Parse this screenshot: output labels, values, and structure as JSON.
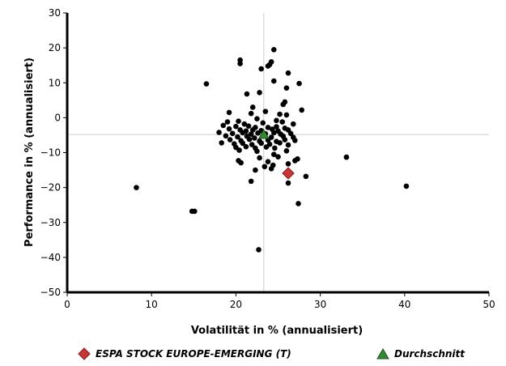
{
  "chart_data": {
    "type": "scatter",
    "xlabel": "Volatilität in % (annualisiert)",
    "ylabel": "Performance in % (annualisiert)",
    "xlim": [
      0,
      50
    ],
    "ylim": [
      -50,
      30
    ],
    "x_ticks": [
      0,
      10,
      20,
      30,
      40,
      50
    ],
    "y_ticks": [
      30,
      20,
      10,
      0,
      -10,
      -20,
      -30,
      -40,
      -50
    ],
    "grid": false,
    "legend_position": "bottom",
    "reference_lines": {
      "x": 23.3,
      "y": -4.8,
      "color": "#cccccc"
    },
    "series": [
      {
        "name": "",
        "marker": "circle",
        "color": "#000000",
        "points": [
          [
            24.5,
            19.5
          ],
          [
            20.5,
            16.5
          ],
          [
            20.5,
            15.5
          ],
          [
            24.2,
            16.0
          ],
          [
            23.8,
            14.8
          ],
          [
            24.0,
            15.2
          ],
          [
            16.5,
            9.7
          ],
          [
            23.0,
            14.0
          ],
          [
            26.2,
            12.8
          ],
          [
            27.5,
            9.8
          ],
          [
            26.0,
            8.5
          ],
          [
            22.8,
            7.2
          ],
          [
            24.5,
            10.5
          ],
          [
            21.3,
            6.8
          ],
          [
            25.8,
            4.5
          ],
          [
            25.6,
            3.8
          ],
          [
            27.8,
            2.2
          ],
          [
            22.0,
            3.0
          ],
          [
            19.2,
            1.5
          ],
          [
            21.8,
            1.2
          ],
          [
            23.5,
            1.8
          ],
          [
            25.2,
            1.0
          ],
          [
            26.0,
            0.8
          ],
          [
            22.5,
            -0.3
          ],
          [
            24.8,
            -0.8
          ],
          [
            19.0,
            -1.2
          ],
          [
            20.3,
            -1.0
          ],
          [
            21.0,
            -1.8
          ],
          [
            23.2,
            -1.5
          ],
          [
            25.5,
            -1.2
          ],
          [
            26.8,
            -1.8
          ],
          [
            18.5,
            -2.2
          ],
          [
            20.0,
            -2.5
          ],
          [
            21.5,
            -2.4
          ],
          [
            22.3,
            -2.8
          ],
          [
            23.8,
            -2.8
          ],
          [
            24.8,
            -2.6
          ],
          [
            25.8,
            -3.0
          ],
          [
            19.2,
            -3.2
          ],
          [
            20.5,
            -3.5
          ],
          [
            21.2,
            -3.8
          ],
          [
            22.0,
            -3.5
          ],
          [
            23.0,
            -3.7
          ],
          [
            24.3,
            -3.3
          ],
          [
            25.0,
            -3.8
          ],
          [
            26.2,
            -3.5
          ],
          [
            18.0,
            -4.2
          ],
          [
            19.6,
            -4.5
          ],
          [
            20.8,
            -4.3
          ],
          [
            21.8,
            -4.7
          ],
          [
            22.6,
            -4.4
          ],
          [
            23.5,
            -4.6
          ],
          [
            24.5,
            -4.3
          ],
          [
            25.3,
            -4.7
          ],
          [
            26.5,
            -4.5
          ],
          [
            18.8,
            -5.2
          ],
          [
            20.2,
            -5.5
          ],
          [
            21.3,
            -5.3
          ],
          [
            22.2,
            -5.8
          ],
          [
            23.2,
            -5.2
          ],
          [
            24.2,
            -5.6
          ],
          [
            25.6,
            -5.3
          ],
          [
            26.8,
            -5.6
          ],
          [
            19.3,
            -6.3
          ],
          [
            20.6,
            -6.6
          ],
          [
            21.6,
            -6.2
          ],
          [
            22.8,
            -6.7
          ],
          [
            23.8,
            -6.4
          ],
          [
            24.8,
            -6.8
          ],
          [
            25.8,
            -6.3
          ],
          [
            27.0,
            -6.5
          ],
          [
            18.3,
            -7.2
          ],
          [
            19.8,
            -7.5
          ],
          [
            20.8,
            -7.3
          ],
          [
            21.9,
            -7.7
          ],
          [
            23.0,
            -7.3
          ],
          [
            24.0,
            -7.6
          ],
          [
            25.2,
            -7.2
          ],
          [
            26.2,
            -7.8
          ],
          [
            20.0,
            -8.5
          ],
          [
            21.2,
            -8.3
          ],
          [
            22.3,
            -8.7
          ],
          [
            23.6,
            -8.4
          ],
          [
            24.6,
            -8.7
          ],
          [
            20.4,
            -9.3
          ],
          [
            22.5,
            -9.6
          ],
          [
            24.5,
            -10.5
          ],
          [
            26.0,
            -9.5
          ],
          [
            22.8,
            -11.5
          ],
          [
            25.0,
            -11.2
          ],
          [
            27.3,
            -11.8
          ],
          [
            20.3,
            -12.3
          ],
          [
            27.0,
            -12.3
          ],
          [
            23.8,
            -12.6
          ],
          [
            20.6,
            -12.9
          ],
          [
            26.2,
            -13.2
          ],
          [
            24.4,
            -13.6
          ],
          [
            23.4,
            -14.0
          ],
          [
            24.2,
            -14.6
          ],
          [
            22.3,
            -15.0
          ],
          [
            28.3,
            -16.8
          ],
          [
            21.8,
            -18.2
          ],
          [
            33.1,
            -11.3
          ],
          [
            26.2,
            -18.7
          ],
          [
            8.2,
            -20.0
          ],
          [
            40.2,
            -19.6
          ],
          [
            27.4,
            -24.6
          ],
          [
            14.8,
            -26.8
          ],
          [
            15.1,
            -26.8
          ],
          [
            22.7,
            -37.8
          ]
        ]
      },
      {
        "name": "ESPA STOCK EUROPE-EMERGING (T)",
        "marker": "diamond",
        "color": "#cc3333",
        "points": [
          [
            26.2,
            -15.9
          ]
        ]
      },
      {
        "name": "Durchschnitt",
        "marker": "triangle",
        "color": "#338833",
        "points": [
          [
            23.3,
            -4.8
          ]
        ]
      }
    ]
  }
}
